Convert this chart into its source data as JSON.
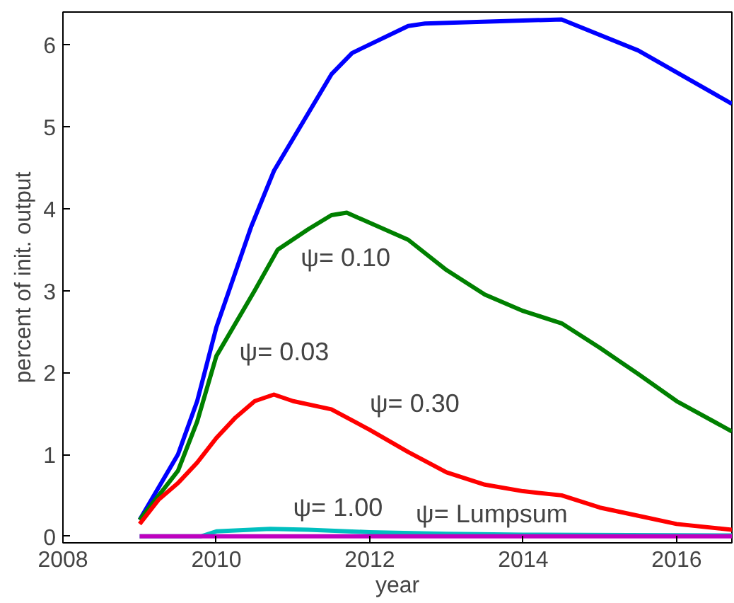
{
  "chart_data": {
    "type": "line",
    "xlabel": "year",
    "ylabel": "percent of init. output",
    "xlim": [
      2008,
      2016.72
    ],
    "ylim": [
      -0.08,
      6.4
    ],
    "xticks": [
      2008,
      2010,
      2012,
      2014,
      2016
    ],
    "yticks": [
      0,
      1,
      2,
      3,
      4,
      5,
      6
    ],
    "grid": false,
    "line_style": "solid",
    "marker": "none",
    "series": [
      {
        "color": "#0000ff",
        "x": [
          2009,
          2009.5,
          2009.75,
          2010,
          2010.45,
          2010.75,
          2011.5,
          2011.77,
          2012.5,
          2012.72,
          2014.5,
          2015.5,
          2016.72
        ],
        "values": [
          0.2,
          1.0,
          1.65,
          2.55,
          3.77,
          4.46,
          5.64,
          5.9,
          6.23,
          6.26,
          6.31,
          5.93,
          5.28
        ]
      },
      {
        "color": "#008000",
        "x": [
          2009,
          2009.5,
          2009.75,
          2010,
          2010.5,
          2010.8,
          2011.2,
          2011.5,
          2011.7,
          2012.5,
          2013,
          2013.5,
          2014,
          2014.5,
          2015,
          2015.5,
          2016,
          2016.72
        ],
        "values": [
          0.2,
          0.8,
          1.4,
          2.2,
          3.0,
          3.5,
          3.75,
          3.92,
          3.95,
          3.62,
          3.25,
          2.95,
          2.75,
          2.6,
          2.3,
          1.98,
          1.65,
          1.28
        ]
      },
      {
        "color": "#ff0000",
        "x": [
          2009,
          2009.25,
          2009.5,
          2009.75,
          2010,
          2010.25,
          2010.5,
          2010.75,
          2011,
          2011.5,
          2012,
          2012.5,
          2013,
          2013.5,
          2014,
          2014.5,
          2015,
          2015.5,
          2016,
          2016.72
        ],
        "values": [
          0.15,
          0.45,
          0.65,
          0.9,
          1.2,
          1.45,
          1.65,
          1.73,
          1.65,
          1.55,
          1.3,
          1.03,
          0.78,
          0.63,
          0.55,
          0.5,
          0.35,
          0.25,
          0.15,
          0.08
        ]
      },
      {
        "color": "#00bfbf",
        "x": [
          2009,
          2009.8,
          2010,
          2010.7,
          2011.2,
          2012,
          2013,
          2014,
          2016.72
        ],
        "values": [
          0,
          0,
          0.06,
          0.09,
          0.08,
          0.05,
          0.03,
          0.02,
          0.01
        ]
      },
      {
        "color": "#bf00bf",
        "x": [
          2009,
          2016.72
        ],
        "values": [
          0,
          0
        ]
      }
    ],
    "annotations": [
      "ψ= 0.10",
      "ψ= 0.03",
      "ψ= 0.30",
      "ψ= 1.00",
      "ψ= Lumpsum"
    ]
  }
}
